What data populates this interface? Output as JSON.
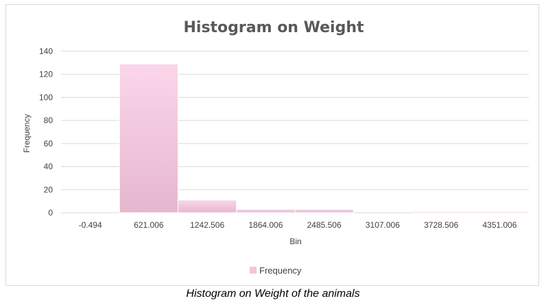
{
  "chart_data": {
    "type": "bar",
    "title": "Histogram on Weight",
    "xlabel": "Bin",
    "ylabel": "Frequency",
    "categories": [
      "-0.494",
      "621.006",
      "1242.506",
      "1864.006",
      "2485.506",
      "3107.006",
      "3728.506",
      "4351.006"
    ],
    "series": [
      {
        "name": "Frequency",
        "values": [
          0,
          129,
          11,
          3,
          3,
          0,
          1,
          1
        ]
      }
    ],
    "ylim": [
      0,
      140
    ],
    "yticks": [
      0,
      20,
      40,
      60,
      80,
      100,
      120,
      140
    ],
    "grid": true,
    "legend": "bottom"
  },
  "colors": {
    "bar_fill_top": "#fbd6ea",
    "bar_fill_bottom": "#e6b7cf",
    "bar_stroke": "#ffffff",
    "grid": "#d9d9d9",
    "legend_swatch": "#f4c3dd"
  },
  "caption": "Histogram on Weight of the animals"
}
